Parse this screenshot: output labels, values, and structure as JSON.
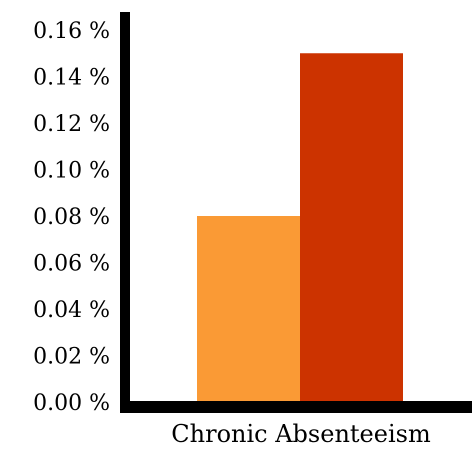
{
  "chart_data": {
    "type": "bar",
    "title": "",
    "xlabel": "",
    "ylabel": "",
    "categories": [
      "Chronic Absenteeism"
    ],
    "series": [
      {
        "values": [
          0.08
        ],
        "color": "#fa9a35"
      },
      {
        "values": [
          0.15
        ],
        "color": "#cc3300"
      }
    ],
    "ylim": [
      0,
      0.16
    ],
    "yticks": [
      0,
      0.02,
      0.04,
      0.06,
      0.08,
      0.1,
      0.12,
      0.14,
      0.16
    ],
    "ytick_labels": [
      "0.00 %",
      "0.02 %",
      "0.04 %",
      "0.06 %",
      "0.08 %",
      "0.10 %",
      "0.12 %",
      "0.14 %",
      "0.16 %"
    ],
    "grid": false,
    "legend": "none"
  }
}
